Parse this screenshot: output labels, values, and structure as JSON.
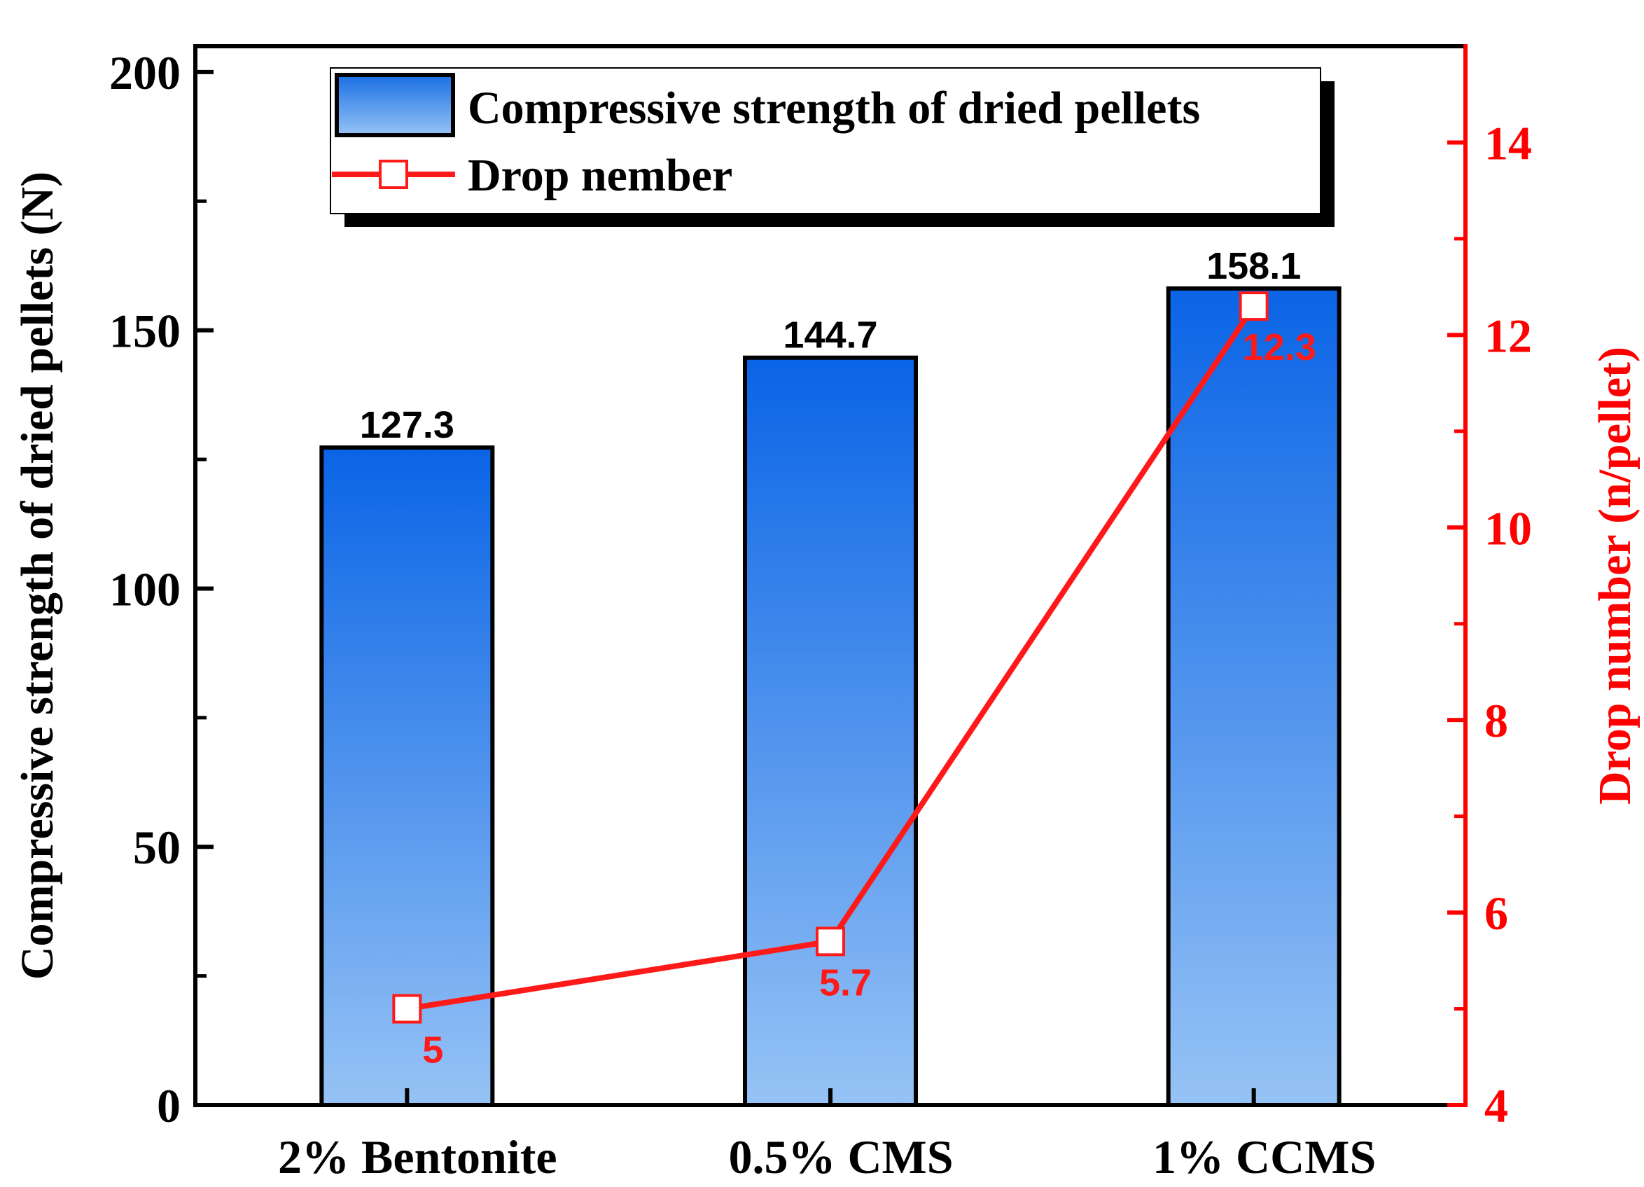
{
  "chart_data": {
    "type": "bar",
    "categories": [
      "2% Bentonite",
      "0.5% CMS",
      "1% CCMS"
    ],
    "series": [
      {
        "name": "Compressive strength of dried pellets",
        "axis": "left",
        "kind": "bar",
        "values": [
          127.3,
          144.7,
          158.1
        ],
        "labels": [
          "127.3",
          "144.7",
          "158.1"
        ]
      },
      {
        "name": "Drop nember",
        "axis": "right",
        "kind": "line",
        "marker": "open-square",
        "values": [
          5,
          5.7,
          12.3
        ],
        "labels": [
          "5",
          "5.7",
          "12.3"
        ]
      }
    ],
    "ylabel_left": "Compressive strength of dried pellets (N)",
    "ylabel_right": "Drop number (n/pellet)",
    "ylim_left": [
      0,
      205
    ],
    "ylim_right": [
      4,
      15
    ],
    "yticks_left": [
      0,
      50,
      100,
      150,
      200
    ],
    "yticks_right": [
      4,
      6,
      8,
      10,
      12,
      14
    ],
    "ytick_labels_left": [
      "0",
      "50",
      "100",
      "150",
      "200"
    ],
    "ytick_labels_right": [
      "4",
      "6",
      "8",
      "10",
      "12",
      "14"
    ],
    "legend_position": "top-center",
    "grid": false
  },
  "colors": {
    "axis": "#000000",
    "right_axis": "#ff0000",
    "line": "#ff1a1a",
    "bar_top": "#0a64e6",
    "bar_bottom": "#96c3f5",
    "bar_border": "#000000"
  }
}
